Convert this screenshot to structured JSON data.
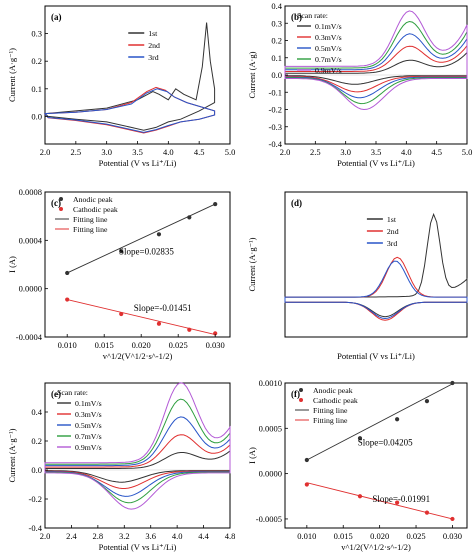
{
  "figure": {
    "panels": [
      {
        "id": "a",
        "label": "(a)",
        "ylabel": "Current (A·g⁻¹)",
        "xlabel": "Potential (V vs Li⁺/Li)"
      },
      {
        "id": "b",
        "label": "(b)",
        "ylabel": "Current (A·g)",
        "xlabel": "Potential (V vs Li⁺/Li)",
        "legend_title": "Scan rate:"
      },
      {
        "id": "c",
        "label": "(c)",
        "ylabel": "I (A)",
        "xlabel": "v^1/2(V^1/2·s^-1/2)"
      },
      {
        "id": "d",
        "label": "(d)",
        "ylabel": "Current (A·g⁻¹)",
        "xlabel": "Potential (V vs Li⁺/Li)"
      },
      {
        "id": "e",
        "label": "(e)",
        "ylabel": "Current (A·g⁻¹)",
        "xlabel": "Potential (V vs Li⁺/Li)",
        "legend_title": "Scan rate:"
      },
      {
        "id": "f",
        "label": "(f)",
        "ylabel": "I (A)",
        "xlabel": "v^1/2(V^1/2·s^-1/2)"
      }
    ]
  },
  "chart_data": [
    {
      "panel": "a",
      "type": "line",
      "xlim": [
        2.0,
        5.0
      ],
      "ylim": [
        -0.1,
        0.4
      ],
      "xticks": [
        "2.0",
        "2.5",
        "3.0",
        "3.5",
        "4.0",
        "4.5",
        "5.0"
      ],
      "yticks": [
        "0.0",
        "0.1",
        "0.2",
        "0.3"
      ],
      "series": [
        {
          "name": "1st",
          "color": "#333333",
          "upper": [
            [
              2.0,
              0.01
            ],
            [
              2.5,
              0.02
            ],
            [
              3.0,
              0.03
            ],
            [
              3.5,
              0.06
            ],
            [
              3.75,
              0.09
            ],
            [
              3.85,
              0.08
            ],
            [
              4.0,
              0.06
            ],
            [
              4.12,
              0.1
            ],
            [
              4.25,
              0.08
            ],
            [
              4.45,
              0.06
            ],
            [
              4.55,
              0.18
            ],
            [
              4.62,
              0.34
            ],
            [
              4.68,
              0.2
            ],
            [
              4.75,
              0.1
            ]
          ],
          "lower": [
            [
              4.75,
              0.05
            ],
            [
              4.5,
              0.02
            ],
            [
              4.2,
              -0.01
            ],
            [
              4.0,
              -0.02
            ],
            [
              3.8,
              -0.04
            ],
            [
              3.6,
              -0.05
            ],
            [
              3.4,
              -0.04
            ],
            [
              3.0,
              -0.02
            ],
            [
              2.5,
              -0.01
            ],
            [
              2.05,
              0.0
            ]
          ]
        },
        {
          "name": "2nd",
          "color": "#e03030",
          "upper": [
            [
              2.0,
              0.01
            ],
            [
              2.5,
              0.015
            ],
            [
              3.0,
              0.025
            ],
            [
              3.4,
              0.05
            ],
            [
              3.65,
              0.09
            ],
            [
              3.8,
              0.105
            ],
            [
              3.95,
              0.095
            ],
            [
              4.1,
              0.07
            ],
            [
              4.3,
              0.05
            ],
            [
              4.6,
              0.03
            ],
            [
              4.75,
              0.02
            ]
          ],
          "lower": [
            [
              4.75,
              0.005
            ],
            [
              4.5,
              -0.01
            ],
            [
              4.2,
              -0.02
            ],
            [
              4.0,
              -0.035
            ],
            [
              3.8,
              -0.05
            ],
            [
              3.6,
              -0.06
            ],
            [
              3.4,
              -0.05
            ],
            [
              3.0,
              -0.03
            ],
            [
              2.5,
              -0.015
            ],
            [
              2.05,
              -0.005
            ]
          ]
        },
        {
          "name": "3rd",
          "color": "#2855c8",
          "upper": [
            [
              2.0,
              0.01
            ],
            [
              2.5,
              0.015
            ],
            [
              3.0,
              0.025
            ],
            [
              3.4,
              0.045
            ],
            [
              3.65,
              0.085
            ],
            [
              3.82,
              0.1
            ],
            [
              3.98,
              0.09
            ],
            [
              4.1,
              0.07
            ],
            [
              4.3,
              0.05
            ],
            [
              4.6,
              0.03
            ],
            [
              4.75,
              0.02
            ]
          ],
          "lower": [
            [
              4.75,
              0.005
            ],
            [
              4.5,
              -0.01
            ],
            [
              4.2,
              -0.02
            ],
            [
              4.0,
              -0.033
            ],
            [
              3.8,
              -0.048
            ],
            [
              3.6,
              -0.058
            ],
            [
              3.4,
              -0.048
            ],
            [
              3.0,
              -0.028
            ],
            [
              2.5,
              -0.013
            ],
            [
              2.05,
              -0.004
            ]
          ]
        }
      ]
    },
    {
      "panel": "b",
      "type": "line",
      "xlim": [
        2.0,
        5.0
      ],
      "ylim": [
        -0.4,
        0.4
      ],
      "xticks": [
        "2.0",
        "2.5",
        "3.0",
        "3.5",
        "4.0",
        "4.5",
        "5.0"
      ],
      "yticks": [
        "-0.4",
        "-0.3",
        "-0.2",
        "-0.1",
        "0.0",
        "0.1",
        "0.2",
        "0.3",
        "0.4"
      ],
      "series": [
        {
          "name": "0.1mV/s",
          "color": "#333333",
          "peak_ox": 0.07,
          "peak_red": -0.05
        },
        {
          "name": "0.3mV/s",
          "color": "#e03030",
          "peak_ox": 0.14,
          "peak_red": -0.09
        },
        {
          "name": "0.5mV/s",
          "color": "#2855c8",
          "peak_ox": 0.2,
          "peak_red": -0.12
        },
        {
          "name": "0.7mV/s",
          "color": "#2e9e3e",
          "peak_ox": 0.26,
          "peak_red": -0.15
        },
        {
          "name": "0.9mV/s",
          "color": "#b35ad6",
          "peak_ox": 0.31,
          "peak_red": -0.18
        }
      ]
    },
    {
      "panel": "c",
      "type": "scatter",
      "xlim": [
        0.007,
        0.032
      ],
      "ylim": [
        -0.0004,
        0.0008
      ],
      "xticks": [
        "0.010",
        "0.015",
        "0.020",
        "0.025",
        "0.030"
      ],
      "yticks": [
        "-0.0004",
        "0.0000",
        "0.0004",
        "0.0008"
      ],
      "series": [
        {
          "name": "Anodic peak",
          "color": "#333333",
          "x": [
            0.01,
            0.0173,
            0.0224,
            0.0265,
            0.03
          ],
          "y": [
            0.00013,
            0.00031,
            0.00045,
            0.00059,
            0.0007
          ]
        },
        {
          "name": "Cathodic peak",
          "color": "#e03030",
          "x": [
            0.01,
            0.0173,
            0.0224,
            0.0265,
            0.03
          ],
          "y": [
            -9e-05,
            -0.00021,
            -0.00029,
            -0.00034,
            -0.00037
          ]
        }
      ],
      "fits": [
        {
          "name": "Fitting line",
          "color": "#333333",
          "x": [
            0.01,
            0.03
          ],
          "y": [
            0.00013,
            0.0007
          ]
        },
        {
          "name": "Fitting line",
          "color": "#e03030",
          "x": [
            0.01,
            0.03
          ],
          "y": [
            -9e-05,
            -0.00038
          ]
        }
      ],
      "annotations": [
        "Slope=0.02835",
        "Slope=-0.01451"
      ]
    },
    {
      "panel": "d",
      "type": "line",
      "xlim": [
        2.0,
        5.0
      ],
      "ylim": [
        -0.1,
        0.3
      ],
      "series": [
        {
          "name": "1st",
          "color": "#333333"
        },
        {
          "name": "2nd",
          "color": "#e03030"
        },
        {
          "name": "3rd",
          "color": "#2855c8"
        }
      ]
    },
    {
      "panel": "e",
      "type": "line",
      "xlim": [
        2.0,
        4.8
      ],
      "ylim": [
        -0.4,
        0.6
      ],
      "xticks": [
        "2.0",
        "2.4",
        "2.8",
        "3.2",
        "3.6",
        "4.0",
        "4.4",
        "4.8"
      ],
      "yticks": [
        "-0.4",
        "-0.2",
        "0.0",
        "0.2",
        "0.4"
      ],
      "series": [
        {
          "name": "0.1mV/s",
          "color": "#333333",
          "peak_ox": 0.1,
          "peak_red": -0.08
        },
        {
          "name": "0.3mV/s",
          "color": "#e03030",
          "peak_ox": 0.21,
          "peak_red": -0.12
        },
        {
          "name": "0.5mV/s",
          "color": "#2855c8",
          "peak_ox": 0.32,
          "peak_red": -0.17
        },
        {
          "name": "0.7mV/s",
          "color": "#2e9e3e",
          "peak_ox": 0.43,
          "peak_red": -0.21
        },
        {
          "name": "0.9mV/s",
          "color": "#b35ad6",
          "peak_ox": 0.53,
          "peak_red": -0.25
        }
      ]
    },
    {
      "panel": "f",
      "type": "scatter",
      "xlim": [
        0.007,
        0.032
      ],
      "ylim": [
        -0.0006,
        0.001
      ],
      "xticks": [
        "0.010",
        "0.015",
        "0.020",
        "0.025",
        "0.030"
      ],
      "yticks": [
        "-0.0005",
        "0.0000",
        "0.0005",
        "0.0010"
      ],
      "series": [
        {
          "name": "Anodic peak",
          "color": "#333333",
          "x": [
            0.01,
            0.0173,
            0.0224,
            0.0265,
            0.03
          ],
          "y": [
            0.00015,
            0.00039,
            0.0006,
            0.0008,
            0.001
          ]
        },
        {
          "name": "Cathodic peak",
          "color": "#e03030",
          "x": [
            0.01,
            0.0173,
            0.0224,
            0.0265,
            0.03
          ],
          "y": [
            -0.00012,
            -0.00025,
            -0.00032,
            -0.00043,
            -0.0005
          ]
        }
      ],
      "fits": [
        {
          "name": "Fitting line",
          "color": "#333333",
          "x": [
            0.01,
            0.03
          ],
          "y": [
            0.00015,
            0.00099
          ]
        },
        {
          "name": "Fitting line",
          "color": "#e03030",
          "x": [
            0.01,
            0.03
          ],
          "y": [
            -0.0001,
            -0.0005
          ]
        }
      ],
      "annotations": [
        "Slope=0.04205",
        "Slope=-0.01991"
      ]
    }
  ]
}
